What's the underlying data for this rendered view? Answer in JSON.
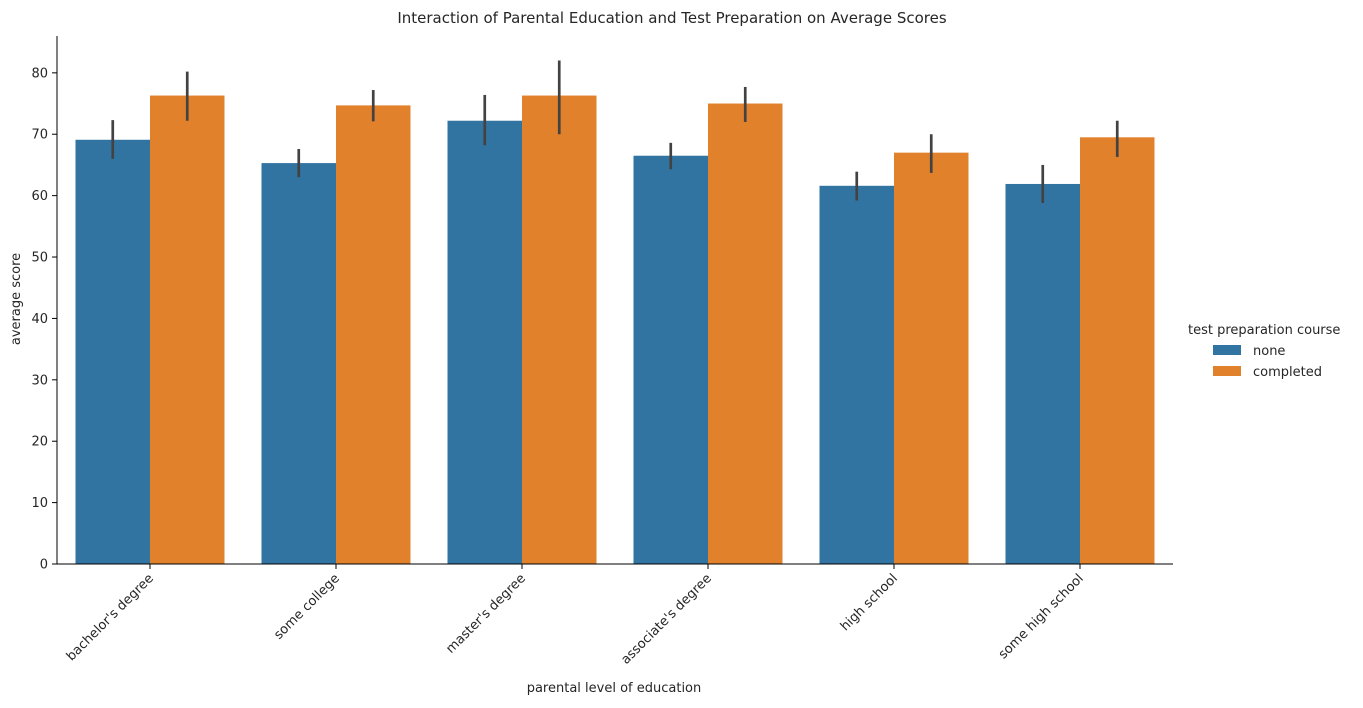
{
  "chart_data": {
    "type": "bar",
    "title": "Interaction of Parental Education and Test Preparation on Average Scores",
    "xlabel": "parental level of education",
    "ylabel": "average score",
    "ylim": [
      0,
      86
    ],
    "yticks": [
      0,
      10,
      20,
      30,
      40,
      50,
      60,
      70,
      80
    ],
    "ytick_labels": [
      "0",
      "10",
      "20",
      "30",
      "40",
      "50",
      "60",
      "70",
      "80"
    ],
    "categories": [
      "bachelor's degree",
      "some college",
      "master's degree",
      "associate's degree",
      "high school",
      "some high school"
    ],
    "series": [
      {
        "name": "none",
        "color": "#3274a1",
        "values": [
          69.1,
          65.3,
          72.2,
          66.5,
          61.6,
          61.9
        ],
        "error_low": [
          66.0,
          63.0,
          68.2,
          64.3,
          59.2,
          58.8
        ],
        "error_high": [
          72.3,
          67.6,
          76.4,
          68.6,
          63.9,
          65.0
        ]
      },
      {
        "name": "completed",
        "color": "#e1812c",
        "values": [
          76.3,
          74.7,
          76.3,
          75.0,
          67.0,
          69.5
        ],
        "error_low": [
          72.2,
          72.1,
          70.0,
          72.0,
          63.7,
          66.3
        ],
        "error_high": [
          80.2,
          77.2,
          82.0,
          77.7,
          70.0,
          72.2
        ]
      }
    ],
    "error_bar_color": "#424242",
    "legend": {
      "title": "test preparation course",
      "placement": "right"
    },
    "grid": false,
    "tick_rotation": 45
  }
}
